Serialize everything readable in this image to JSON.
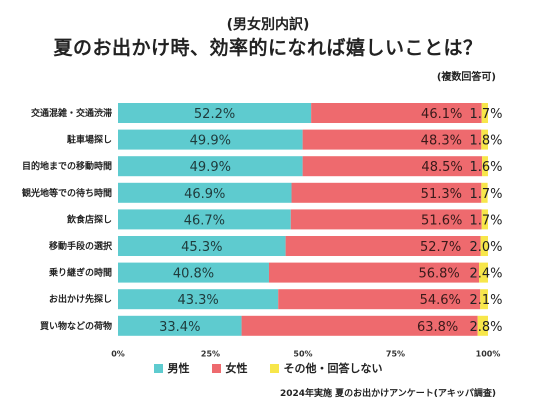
{
  "header": {
    "subtitle": "(男女別内訳)",
    "title": "夏のお出かけ時、効率的になれば嬉しいことは？",
    "note": "(複数回答可)"
  },
  "footer": {
    "source": "2024年実施 夏のお出かけアンケート(アキッパ調査)"
  },
  "chart_data": {
    "type": "bar",
    "orientation": "horizontal",
    "stacked": true,
    "categories": [
      "交通混雑・交通渋滞",
      "駐車場探し",
      "目的地までの移動時間",
      "観光地等での待ち時間",
      "飲食店探し",
      "移動手段の選択",
      "乗り継ぎの時間",
      "お出かけ先探し",
      "買い物などの荷物"
    ],
    "series": [
      {
        "name": "男性",
        "color": "#5ecbcf",
        "values": [
          52.2,
          49.9,
          49.9,
          46.9,
          46.7,
          45.3,
          40.8,
          43.3,
          33.4
        ],
        "labels": [
          "52.2%",
          "49.9%",
          "49.9%",
          "46.9%",
          "46.7%",
          "45.3%",
          "40.8%",
          "43.3%",
          "33.4%"
        ]
      },
      {
        "name": "女性",
        "color": "#ee6a6e",
        "values": [
          46.1,
          48.3,
          48.5,
          51.3,
          51.6,
          52.7,
          56.8,
          54.6,
          63.8
        ],
        "labels": [
          "46.1%",
          "48.3%",
          "48.5%",
          "51.3%",
          "51.6%",
          "52.7%",
          "56.8%",
          "54.6%",
          "63.8%"
        ]
      },
      {
        "name": "その他・回答しない",
        "color": "#f7e64a",
        "values": [
          1.7,
          1.8,
          1.6,
          1.7,
          1.7,
          2.0,
          2.4,
          2.1,
          2.8
        ],
        "labels": [
          "1.7%",
          "1.8%",
          "1.6%",
          "1.7%",
          "1.7%",
          "2.0%",
          "2.4%",
          "2.1%",
          "2.8%"
        ]
      }
    ],
    "xlim": [
      0,
      100
    ],
    "xticks": [
      "0%",
      "25%",
      "50%",
      "75%",
      "100%"
    ],
    "grid": false,
    "legend_position": "bottom"
  }
}
